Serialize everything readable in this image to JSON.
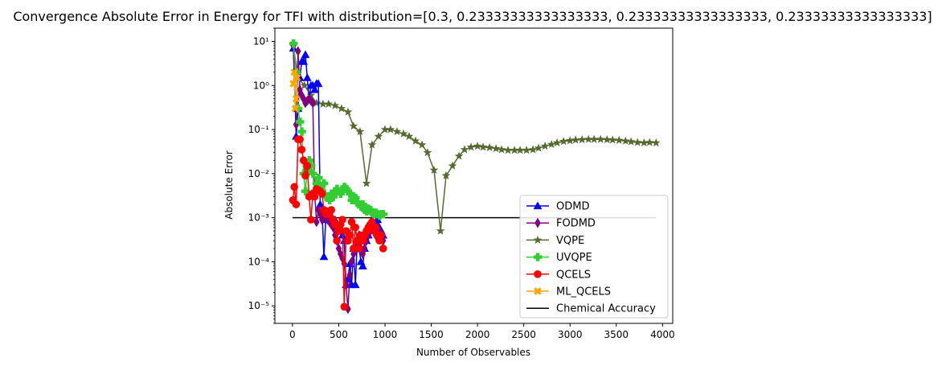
{
  "chart_data": {
    "type": "line",
    "title": "Convergence Absolute Error in Energy for TFI with distribution=[0.3, 0.23333333333333333, 0.23333333333333333, 0.23333333333333333]",
    "xlabel": "Number of Observables",
    "ylabel": "Absolute Error",
    "yscale": "log",
    "xlim": [
      -190,
      4110
    ],
    "ylim": [
      4e-06,
      20
    ],
    "x_ticks": [
      0,
      500,
      1000,
      1500,
      2000,
      2500,
      3000,
      3500,
      4000
    ],
    "x_tick_labels": [
      "0",
      "500",
      "1000",
      "1500",
      "2000",
      "2500",
      "3000",
      "3500",
      "4000"
    ],
    "y_ticks": [
      1e-05,
      0.0001,
      0.001,
      0.01,
      0.1,
      1,
      10
    ],
    "y_tick_labels": [
      "10⁻⁵",
      "10⁻⁴",
      "10⁻³",
      "10⁻²",
      "10⁻¹",
      "10⁰",
      "10¹"
    ],
    "grid": false,
    "legend_position": "lower-right",
    "series": [
      {
        "name": "ODMD",
        "color": "#0000ff",
        "marker": "triangle",
        "x": [
          10,
          40,
          60,
          80,
          100,
          120,
          140,
          160,
          180,
          200,
          220,
          240,
          260,
          280,
          300,
          320,
          340,
          360,
          380,
          400,
          420,
          440,
          460,
          480,
          500,
          520,
          540,
          560,
          580,
          600,
          620,
          640,
          660,
          680,
          700,
          720,
          740,
          760,
          780,
          800,
          820,
          840,
          860,
          880,
          900,
          920,
          940,
          960,
          980
        ],
        "y": [
          7.0,
          0.07,
          0.3,
          1.5,
          3.5,
          3.5,
          5.0,
          1.5,
          0.5,
          1.0,
          1.0,
          0.8,
          1.1,
          1.1,
          0.002,
          0.0015,
          0.00013,
          0.0009,
          0.0012,
          0.0009,
          0.0011,
          0.0008,
          0.0009,
          0.0007,
          0.0006,
          0.0005,
          0.0004,
          0.0003,
          3e-05,
          4e-05,
          9e-05,
          3e-05,
          0.0002,
          3e-05,
          0.0003,
          0.0002,
          0.0001,
          8e-05,
          0.0002,
          0.0003,
          0.0004,
          0.0005,
          0.0006,
          0.0007,
          0.0008,
          0.0009,
          0.0006,
          0.0005,
          0.0004
        ]
      },
      {
        "name": "FODMD",
        "color": "#800080",
        "marker": "diamond",
        "x": [
          10,
          40,
          60,
          80,
          100,
          120,
          140,
          160,
          180,
          200,
          220,
          240,
          260,
          280,
          300,
          320,
          340,
          360,
          380,
          400,
          420,
          440,
          460,
          480,
          500,
          520,
          540,
          560,
          580,
          600,
          620,
          640,
          660,
          680,
          700,
          720,
          740,
          760,
          780,
          800,
          820,
          840,
          860,
          880,
          900,
          920,
          940,
          960,
          980
        ],
        "y": [
          8.0,
          0.13,
          6.0,
          0.8,
          0.6,
          0.5,
          0.4,
          0.45,
          0.5,
          0.45,
          0.4,
          0.0035,
          0.0008,
          0.0015,
          0.0012,
          0.0009,
          0.0011,
          0.001,
          0.0009,
          0.0008,
          0.0007,
          0.0006,
          0.0004,
          0.0003,
          0.0002,
          0.00015,
          0.00012,
          9e-05,
          3e-05,
          8.5e-06,
          5e-05,
          0.0001,
          0.00015,
          0.0002,
          0.0003,
          0.0004,
          0.0002,
          0.00015,
          0.0002,
          0.0003,
          0.0004,
          0.0005,
          0.0006,
          0.0005,
          0.0004,
          0.0006,
          0.0005,
          0.0004,
          0.0003
        ]
      },
      {
        "name": "VQPE",
        "color": "#556b2f",
        "marker": "star",
        "x": [
          10,
          60,
          130,
          200,
          260,
          330,
          390,
          460,
          530,
          600,
          660,
          730,
          800,
          860,
          930,
          1000,
          1060,
          1130,
          1200,
          1260,
          1330,
          1400,
          1460,
          1530,
          1600,
          1660,
          1730,
          1800,
          1860,
          1930,
          2000,
          2060,
          2130,
          2200,
          2260,
          2330,
          2400,
          2460,
          2530,
          2600,
          2660,
          2730,
          2800,
          2860,
          2930,
          3000,
          3060,
          3130,
          3200,
          3260,
          3330,
          3400,
          3460,
          3530,
          3600,
          3660,
          3730,
          3800,
          3860,
          3930
        ],
        "y": [
          8.0,
          1.5,
          1.0,
          0.6,
          0.4,
          0.38,
          0.38,
          0.35,
          0.3,
          0.25,
          0.12,
          0.09,
          0.006,
          0.045,
          0.07,
          0.1,
          0.1,
          0.09,
          0.08,
          0.07,
          0.055,
          0.045,
          0.03,
          0.012,
          0.0005,
          0.009,
          0.015,
          0.025,
          0.035,
          0.04,
          0.042,
          0.04,
          0.039,
          0.037,
          0.035,
          0.034,
          0.034,
          0.034,
          0.034,
          0.035,
          0.038,
          0.042,
          0.046,
          0.05,
          0.054,
          0.056,
          0.058,
          0.059,
          0.06,
          0.06,
          0.06,
          0.059,
          0.058,
          0.057,
          0.055,
          0.053,
          0.051,
          0.05,
          0.051,
          0.05
        ]
      },
      {
        "name": "UVQPE",
        "color": "#32cd32",
        "marker": "plus",
        "x": [
          10,
          40,
          60,
          80,
          100,
          120,
          140,
          160,
          180,
          200,
          220,
          240,
          260,
          280,
          300,
          320,
          340,
          360,
          380,
          400,
          420,
          440,
          460,
          480,
          500,
          520,
          540,
          560,
          580,
          600,
          620,
          640,
          660,
          680,
          700,
          720,
          740,
          760,
          780,
          800,
          820,
          840,
          860,
          880,
          900,
          920,
          940,
          960,
          980
        ],
        "y": [
          9.0,
          2.0,
          0.3,
          0.15,
          0.09,
          0.01,
          0.004,
          0.012,
          0.02,
          0.015,
          0.01,
          0.004,
          0.006,
          0.008,
          0.005,
          0.004,
          0.006,
          0.003,
          0.003,
          0.0025,
          0.0035,
          0.003,
          0.004,
          0.0045,
          0.004,
          0.0035,
          0.004,
          0.005,
          0.0045,
          0.004,
          0.0035,
          0.0025,
          0.003,
          0.0028,
          0.0022,
          0.002,
          0.0018,
          0.002,
          0.0015,
          0.0014,
          0.0016,
          0.0015,
          0.0013,
          0.0012,
          0.0013,
          0.0012,
          0.0011,
          0.0012,
          0.0012
        ]
      },
      {
        "name": "QCELS",
        "color": "#ff0000",
        "marker": "circle",
        "x": [
          5,
          20,
          40,
          60,
          80,
          100,
          120,
          140,
          160,
          180,
          200,
          220,
          240,
          260,
          280,
          300,
          320,
          340,
          360,
          380,
          400,
          420,
          440,
          460,
          480,
          500,
          520,
          540,
          560,
          580,
          600,
          620,
          640,
          660,
          680,
          700,
          720,
          740,
          760,
          780,
          800,
          820,
          840,
          860,
          880,
          900,
          920,
          940,
          960,
          980
        ],
        "y": [
          0.0025,
          0.005,
          0.002,
          0.06,
          0.06,
          0.035,
          0.02,
          0.009,
          0.015,
          0.003,
          0.0009,
          0.0035,
          0.003,
          0.0045,
          0.0042,
          0.004,
          0.0035,
          0.0015,
          0.0012,
          0.0014,
          0.0012,
          0.0015,
          0.0009,
          0.0007,
          0.0003,
          0.0005,
          0.0007,
          0.0009,
          9.5e-06,
          0.0005,
          0.0003,
          0.0004,
          0.0008,
          0.0002,
          0.0006,
          0.0003,
          0.0002,
          0.0004,
          0.0003,
          0.0004,
          0.0005,
          0.0006,
          0.0007,
          0.0008,
          0.0005,
          0.0006,
          0.0004,
          0.0003,
          0.0004,
          0.0002
        ]
      },
      {
        "name": "ML_QCELS",
        "color": "#ffa500",
        "marker": "x",
        "x": [
          10,
          20,
          30,
          40,
          50
        ],
        "y": [
          1.1,
          2.0,
          0.3,
          0.5,
          1.5
        ]
      },
      {
        "name": "Chemical Accuracy",
        "color": "#000000",
        "marker": "none",
        "x": [
          0,
          3930
        ],
        "y": [
          0.001,
          0.001
        ]
      }
    ]
  }
}
